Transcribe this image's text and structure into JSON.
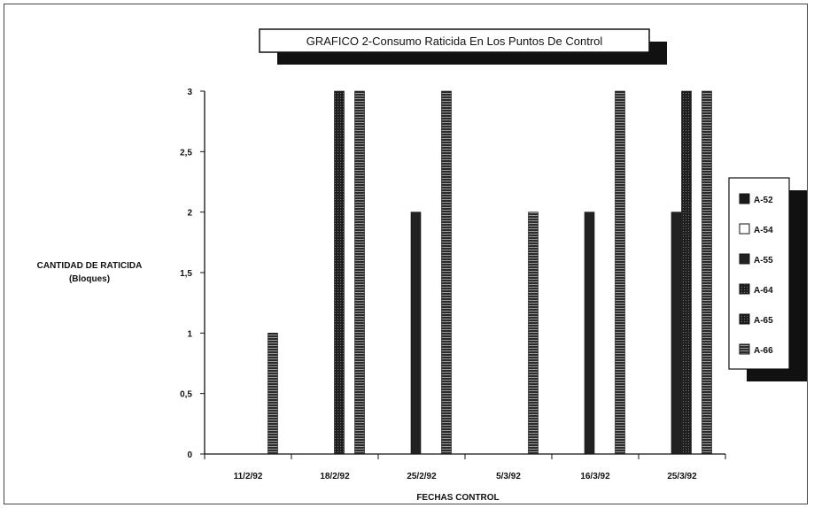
{
  "chart_data": {
    "type": "bar",
    "title": "GRAFICO 2-Consumo Raticida En Los Puntos De Control",
    "xlabel": "FECHAS CONTROL",
    "ylabel": [
      "CANTIDAD DE RATICIDA",
      "(Bloques)"
    ],
    "ylim": [
      0,
      3
    ],
    "yticks": [
      "0",
      "0,5",
      "1",
      "1,5",
      "2",
      "2,5",
      "3"
    ],
    "categories": [
      "11/2/92",
      "18/2/92",
      "25/2/92",
      "5/3/92",
      "16/3/92",
      "25/3/92"
    ],
    "legend_position": "right",
    "series": [
      {
        "name": "A-52",
        "color": "#1a1a1a",
        "pattern": "solid",
        "values": [
          0,
          0,
          0,
          0,
          0,
          0
        ]
      },
      {
        "name": "A-54",
        "color": "#ffffff",
        "pattern": "open",
        "values": [
          0,
          0,
          0,
          0,
          0,
          0
        ]
      },
      {
        "name": "A-55",
        "color": "#222222",
        "pattern": "solid",
        "values": [
          0,
          0,
          2,
          0,
          2,
          2
        ]
      },
      {
        "name": "A-64",
        "color": "#2a2a2a",
        "pattern": "dotted",
        "values": [
          0,
          3,
          0,
          0,
          0,
          3
        ]
      },
      {
        "name": "A-65",
        "color": "#333333",
        "pattern": "dotted",
        "values": [
          0,
          0,
          0,
          0,
          0,
          0
        ]
      },
      {
        "name": "A-66",
        "color": "#2b2b2b",
        "pattern": "striped",
        "values": [
          1,
          3,
          3,
          2,
          3,
          3
        ]
      }
    ]
  }
}
